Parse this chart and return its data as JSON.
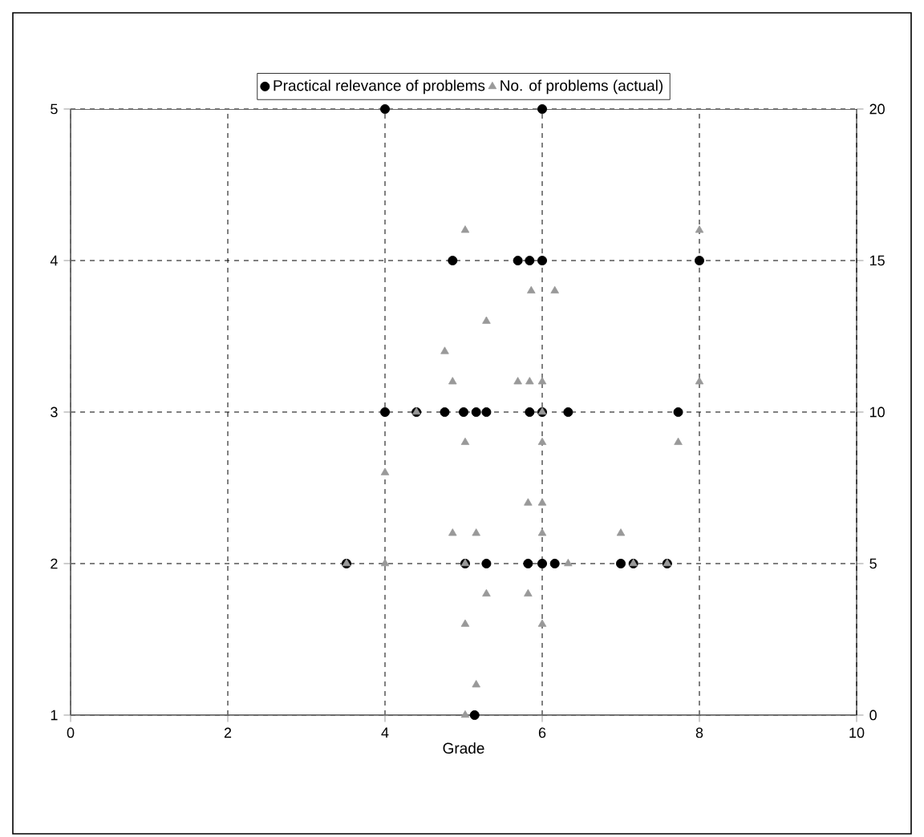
{
  "chart_data": {
    "type": "scatter",
    "xlabel": "Grade",
    "xlim": [
      0,
      10
    ],
    "xticks": [
      0,
      2,
      4,
      6,
      8,
      10
    ],
    "ylim": [
      1,
      5
    ],
    "yticks": [
      1,
      2,
      3,
      4,
      5
    ],
    "y2lim": [
      0,
      20
    ],
    "y2ticks": [
      0,
      5,
      10,
      15,
      20
    ],
    "grid": true,
    "legend": "top",
    "series": [
      {
        "name": "Practical relevance of problems",
        "color": "#000000",
        "marker": "circle",
        "x": [
          4.0,
          6.0,
          4.86,
          5.69,
          5.84,
          6.0,
          8.0,
          4.0,
          4.4,
          4.76,
          5.0,
          5.16,
          5.29,
          5.84,
          6.0,
          6.33,
          7.73,
          3.51,
          5.02,
          5.29,
          5.82,
          6.0,
          6.16,
          7.0,
          7.16,
          7.59,
          5.14
        ],
        "values": [
          5,
          5,
          4,
          4,
          4,
          4,
          4,
          3,
          3,
          3,
          3,
          3,
          3,
          3,
          3,
          3,
          3,
          2,
          2,
          2,
          2,
          2,
          2,
          2,
          2,
          2,
          1
        ]
      },
      {
        "name": "No. of problems (actual)",
        "color": "#999999",
        "marker": "triangle",
        "axis": "y2",
        "x": [
          5.02,
          8.0,
          5.86,
          6.16,
          5.29,
          4.76,
          4.86,
          5.69,
          5.84,
          6.0,
          8.0,
          4.4,
          6.0,
          5.02,
          6.0,
          7.73,
          4.0,
          5.82,
          6.0,
          4.86,
          5.16,
          6.0,
          7.0,
          3.51,
          4.0,
          5.02,
          6.33,
          7.16,
          7.59,
          5.29,
          5.82,
          5.02,
          6.0,
          5.16,
          5.02
        ],
        "values": [
          16,
          16,
          14,
          14,
          13,
          12,
          11,
          11,
          11,
          11,
          11,
          10,
          10,
          9,
          9,
          9,
          8,
          7,
          7,
          6,
          6,
          6,
          6,
          5,
          5,
          5,
          5,
          5,
          5,
          4,
          4,
          3,
          3,
          1,
          0
        ]
      }
    ]
  }
}
